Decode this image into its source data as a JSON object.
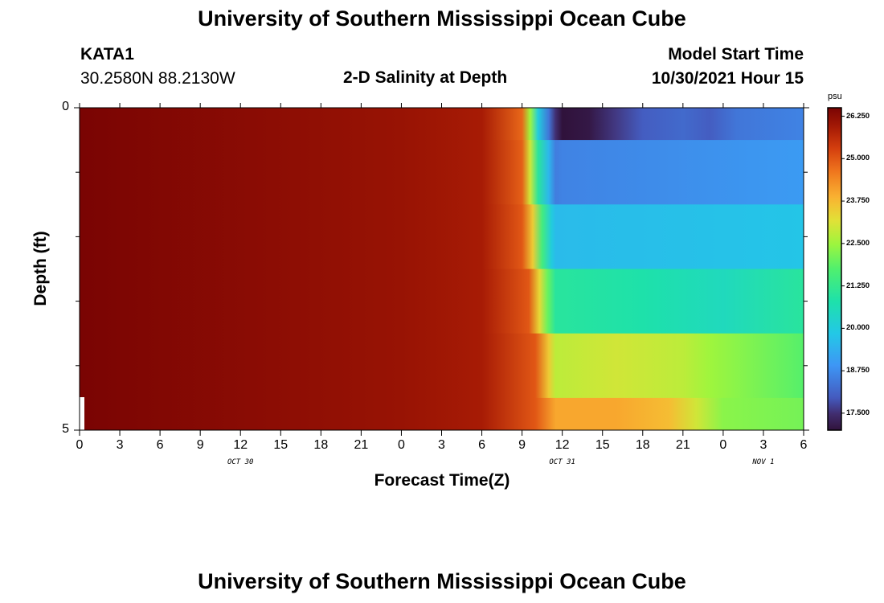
{
  "header": {
    "title": "University of Southern Mississippi Ocean Cube",
    "station": "KATA1",
    "location": "30.2580N  88.2130W",
    "plot_title": "2-D Salinity at Depth",
    "model_start_label": "Model Start Time",
    "model_start_value": "10/30/2021 Hour 15"
  },
  "footer": {
    "title": "University of Southern Mississippi Ocean Cube"
  },
  "chart_data": {
    "type": "heatmap",
    "title": "2-D Salinity at Depth",
    "xlabel": "Forecast Time(Z)",
    "ylabel": "Depth (ft)",
    "x_ticks": [
      "0",
      "3",
      "6",
      "9",
      "12",
      "15",
      "18",
      "21",
      "0",
      "3",
      "6",
      "9",
      "12",
      "15",
      "18",
      "21",
      "0",
      "3",
      "6"
    ],
    "x_hours_since_start": [
      0,
      3,
      6,
      9,
      12,
      15,
      18,
      21,
      24,
      27,
      30,
      33,
      36,
      39,
      42,
      45,
      48,
      51,
      54
    ],
    "date_labels": [
      {
        "label": "OCT 30",
        "hour": 12
      },
      {
        "label": "OCT 31",
        "hour": 36
      },
      {
        "label": "NOV 1",
        "hour": 51
      }
    ],
    "xlim": [
      0,
      54
    ],
    "y_ticks": [
      "0",
      "5"
    ],
    "ylim": [
      5,
      0
    ],
    "colorbar": {
      "unit": "psu",
      "min": 17.0,
      "max": 26.5,
      "labels": [
        "26.250",
        "25.000",
        "23.750",
        "22.500",
        "21.250",
        "20.000",
        "18.750",
        "17.500"
      ],
      "label_values": [
        26.25,
        25.0,
        23.75,
        22.5,
        21.25,
        20.0,
        18.75,
        17.5
      ]
    },
    "layers": [
      {
        "depth_top": 0,
        "depth_bottom": 0.5,
        "knots": [
          [
            0,
            26.5
          ],
          [
            24,
            26.1
          ],
          [
            30,
            25.9
          ],
          [
            33,
            24.8
          ],
          [
            33.6,
            22.5
          ],
          [
            34.2,
            20.0
          ],
          [
            35,
            18.4
          ],
          [
            35.5,
            17.5
          ],
          [
            36,
            17.0
          ],
          [
            38,
            17.1
          ],
          [
            40,
            17.6
          ],
          [
            42,
            18.0
          ],
          [
            45,
            18.2
          ],
          [
            47,
            18.0
          ],
          [
            49,
            18.4
          ],
          [
            54,
            18.6
          ]
        ]
      },
      {
        "depth_top": 0.5,
        "depth_bottom": 1.5,
        "knots": [
          [
            0,
            26.5
          ],
          [
            24,
            26.1
          ],
          [
            30,
            25.9
          ],
          [
            33,
            24.9
          ],
          [
            33.6,
            23.0
          ],
          [
            34.2,
            21.0
          ],
          [
            35,
            19.5
          ],
          [
            35.5,
            18.5
          ],
          [
            36,
            18.6
          ],
          [
            54,
            19.0
          ]
        ]
      },
      {
        "depth_top": 1.5,
        "depth_bottom": 2.5,
        "knots": [
          [
            0,
            26.5
          ],
          [
            24,
            26.1
          ],
          [
            30,
            25.9
          ],
          [
            33,
            25.0
          ],
          [
            33.8,
            23.5
          ],
          [
            34.5,
            21.5
          ],
          [
            35.2,
            20.0
          ],
          [
            35.5,
            19.6
          ],
          [
            54,
            19.8
          ]
        ]
      },
      {
        "depth_top": 2.5,
        "depth_bottom": 3.5,
        "knots": [
          [
            0,
            26.5
          ],
          [
            24,
            26.1
          ],
          [
            30,
            25.9
          ],
          [
            33.5,
            25.0
          ],
          [
            34.3,
            23.3
          ],
          [
            34.9,
            22.0
          ],
          [
            35.5,
            21.0
          ],
          [
            42,
            20.8
          ],
          [
            48,
            20.5
          ],
          [
            54,
            21.0
          ]
        ]
      },
      {
        "depth_top": 3.5,
        "depth_bottom": 4.5,
        "knots": [
          [
            0,
            26.5
          ],
          [
            24,
            26.1
          ],
          [
            30,
            25.9
          ],
          [
            34,
            25.0
          ],
          [
            35,
            23.5
          ],
          [
            35.5,
            22.8
          ],
          [
            40,
            23.0
          ],
          [
            45,
            22.8
          ],
          [
            47,
            22.5
          ],
          [
            54,
            21.8
          ]
        ]
      },
      {
        "depth_top": 4.5,
        "depth_bottom": 5.0,
        "knots": [
          [
            0,
            26.5
          ],
          [
            24,
            26.1
          ],
          [
            30,
            25.9
          ],
          [
            34,
            25.0
          ],
          [
            35.5,
            24.0
          ],
          [
            40,
            24.0
          ],
          [
            44,
            23.7
          ],
          [
            46,
            23.0
          ],
          [
            48,
            22.3
          ],
          [
            54,
            22.1
          ]
        ]
      }
    ]
  }
}
